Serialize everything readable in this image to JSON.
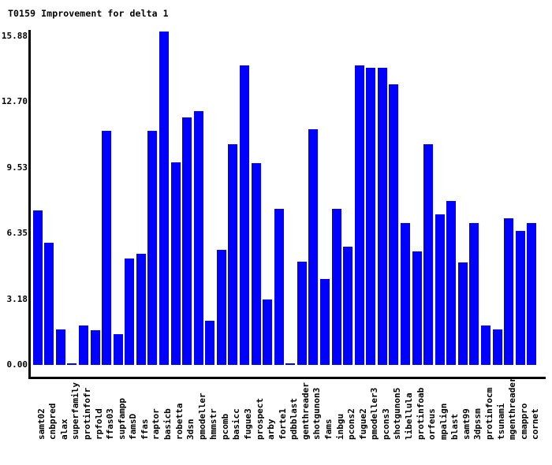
{
  "title": "T0159 Improvement for delta 1",
  "colors": {
    "bar": "#0000ff",
    "axis": "#000000",
    "text": "#000000",
    "background": "#ffffff"
  },
  "chart_data": {
    "type": "bar",
    "title": "T0159 Improvement for delta 1",
    "xlabel": "",
    "ylabel": "",
    "ylim": [
      0,
      15.88
    ],
    "ytick_labels": [
      "0.00",
      "3.18",
      "6.35",
      "9.53",
      "12.70",
      "15.88"
    ],
    "ytick_values": [
      0,
      3.176,
      6.352,
      9.528,
      12.704,
      15.88
    ],
    "grid": false,
    "legend_position": "none",
    "bar_color": "#0000ff",
    "categories": [
      "samt02",
      "cnbpred",
      "alax",
      "superfamily",
      "protinfofr",
      "rpfold",
      "ffas03",
      "supfampp",
      "famsD",
      "ffas",
      "raptor",
      "basicb",
      "robetta",
      "3dsn",
      "pmodeller",
      "hmmstr",
      "pcomb",
      "basicc",
      "fugue3",
      "prospect",
      "arby",
      "forte1",
      "pdbblast",
      "genthreader",
      "shotgunon3",
      "fams",
      "inbgu",
      "pcons2",
      "fugue2",
      "pmodeller3",
      "pcons3",
      "shotgunon5",
      "libellula",
      "protinfoab",
      "orfeus",
      "mpalign",
      "blast",
      "samt99",
      "3dpssm",
      "protinfocm",
      "tsunami",
      "mgenthreader",
      "cmappro",
      "cornet"
    ],
    "values": [
      7.37,
      5.83,
      1.7,
      0.08,
      1.89,
      1.64,
      11.15,
      1.45,
      5.07,
      5.28,
      11.15,
      15.88,
      9.66,
      11.8,
      12.09,
      2.1,
      5.48,
      10.51,
      14.27,
      9.61,
      3.12,
      7.44,
      0.08,
      4.92,
      11.23,
      4.09,
      7.44,
      5.63,
      14.27,
      14.16,
      14.17,
      13.36,
      6.77,
      5.4,
      10.53,
      7.18,
      7.81,
      4.89,
      6.77,
      1.87,
      1.68,
      6.97,
      6.4,
      6.77
    ]
  }
}
